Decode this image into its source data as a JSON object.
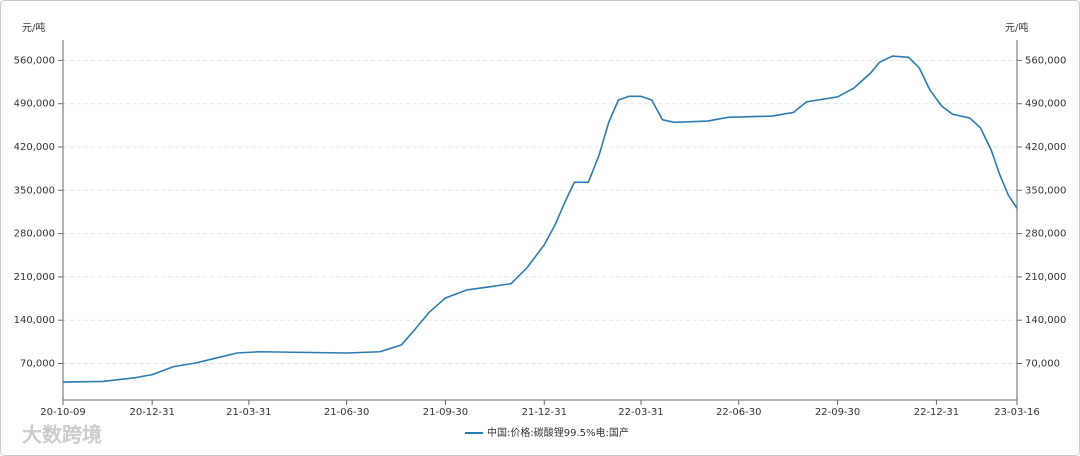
{
  "chart_data": {
    "type": "line",
    "y_label": "元/吨",
    "x": [
      "20-10-09",
      "20-11-15",
      "20-12-15",
      "20-12-31",
      "21-01-20",
      "21-02-10",
      "21-03-01",
      "21-03-20",
      "21-04-10",
      "21-06-30",
      "21-07-31",
      "21-08-20",
      "21-09-01",
      "21-09-15",
      "21-09-30",
      "21-10-20",
      "21-11-10",
      "21-11-30",
      "21-12-15",
      "21-12-31",
      "22-01-10",
      "22-01-20",
      "22-01-28",
      "22-02-10",
      "22-02-20",
      "22-03-01",
      "22-03-10",
      "22-03-20",
      "22-03-31",
      "22-04-10",
      "22-04-20",
      "22-05-01",
      "22-06-01",
      "22-06-20",
      "22-07-31",
      "22-08-20",
      "22-09-01",
      "22-09-30",
      "22-10-15",
      "22-10-31",
      "22-11-08",
      "22-11-20",
      "22-12-05",
      "22-12-15",
      "22-12-25",
      "23-01-05",
      "23-01-15",
      "23-01-31",
      "23-02-10",
      "23-02-20",
      "23-02-28",
      "23-03-08",
      "23-03-16"
    ],
    "series": [
      {
        "name": "中国:价格:碳酸锂99.5%电:国产",
        "color": "#2a7ab0",
        "values": [
          40000,
          41000,
          47000,
          52000,
          65000,
          71000,
          79000,
          87000,
          89000,
          87000,
          89000,
          100000,
          124000,
          153000,
          176000,
          189000,
          194000,
          199000,
          225000,
          262000,
          294000,
          334000,
          363000,
          363000,
          407000,
          460000,
          496000,
          502000,
          502000,
          496000,
          464000,
          460000,
          462000,
          468000,
          470000,
          476000,
          493000,
          501000,
          515000,
          540000,
          557000,
          567000,
          565000,
          548000,
          512000,
          486000,
          473000,
          467000,
          451000,
          415000,
          375000,
          342000,
          321000
        ]
      }
    ],
    "xlim": [
      "20-10-09",
      "23-03-16"
    ],
    "xticks": [
      "20-10-09",
      "20-12-31",
      "21-03-31",
      "21-06-30",
      "21-09-30",
      "21-12-31",
      "22-03-31",
      "22-06-30",
      "22-09-30",
      "22-12-31",
      "23-03-16"
    ],
    "ylim": [
      11000,
      593000
    ],
    "yticks": [
      {
        "value": 70000,
        "label": "70,000"
      },
      {
        "value": 140000,
        "label": "140,000"
      },
      {
        "value": 210000,
        "label": "210,000"
      },
      {
        "value": 280000,
        "label": "280,000"
      },
      {
        "value": 350000,
        "label": "350,000"
      },
      {
        "value": 420000,
        "label": "420,000"
      },
      {
        "value": 490000,
        "label": "490,000"
      },
      {
        "value": 560000,
        "label": "560,000"
      }
    ],
    "grid": true,
    "watermark": "大数跨境"
  }
}
